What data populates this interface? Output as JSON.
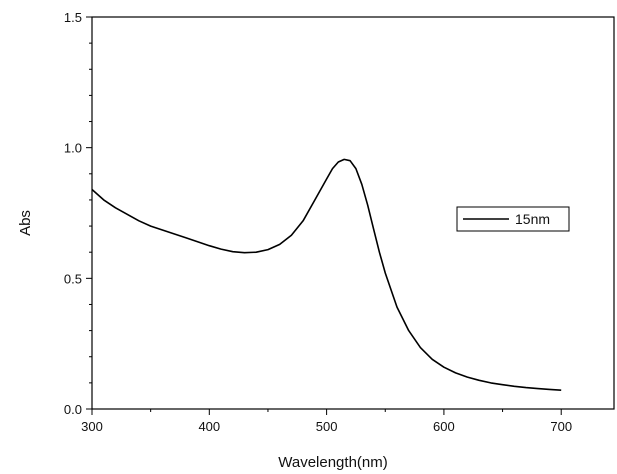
{
  "chart_data": {
    "type": "line",
    "title": "",
    "xlabel": "Wavelength(nm)",
    "ylabel": "Abs",
    "xlim": [
      300,
      745
    ],
    "ylim": [
      0.0,
      1.5
    ],
    "xticks": [
      300,
      400,
      500,
      600,
      700
    ],
    "xtick_labels": [
      "300",
      "400",
      "500",
      "600",
      "700"
    ],
    "yticks": [
      0.0,
      0.5,
      1.0,
      1.5
    ],
    "ytick_labels": [
      "0.0",
      "0.5",
      "1.0",
      "1.5"
    ],
    "grid": false,
    "legend_position": "right",
    "series": [
      {
        "name": "15nm",
        "color": "#000000",
        "x": [
          300,
          310,
          320,
          330,
          340,
          350,
          360,
          370,
          380,
          390,
          400,
          410,
          420,
          430,
          440,
          450,
          460,
          470,
          480,
          490,
          500,
          505,
          510,
          515,
          520,
          525,
          530,
          535,
          540,
          545,
          550,
          560,
          570,
          580,
          590,
          600,
          610,
          620,
          630,
          640,
          650,
          660,
          670,
          680,
          690,
          700
        ],
        "y": [
          0.84,
          0.8,
          0.77,
          0.745,
          0.72,
          0.7,
          0.685,
          0.67,
          0.655,
          0.64,
          0.625,
          0.612,
          0.602,
          0.598,
          0.6,
          0.61,
          0.63,
          0.665,
          0.72,
          0.8,
          0.88,
          0.92,
          0.945,
          0.955,
          0.95,
          0.92,
          0.86,
          0.78,
          0.69,
          0.6,
          0.52,
          0.39,
          0.3,
          0.235,
          0.19,
          0.16,
          0.138,
          0.122,
          0.11,
          0.1,
          0.093,
          0.087,
          0.082,
          0.078,
          0.075,
          0.072
        ]
      }
    ]
  }
}
